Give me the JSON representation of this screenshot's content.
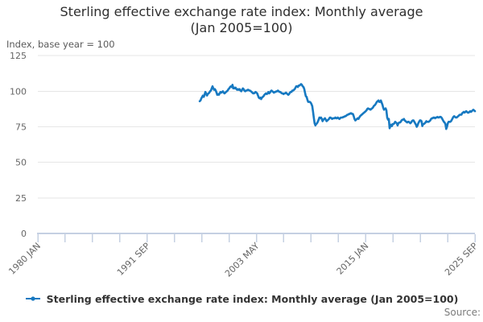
{
  "title": {
    "line1": "Sterling effective exchange rate index: Monthly average",
    "line2": "(Jan 2005=100)"
  },
  "y_axis_unit_label": "Index, base year = 100",
  "legend": {
    "label": "Sterling effective exchange rate index: Monthly average (Jan 2005=100)"
  },
  "source_label": "Source:",
  "colors": {
    "line": "#1779c1",
    "grid": "#e6e6e6",
    "axis": "#c5d0e2",
    "muted_text": "#666666",
    "title_text": "#2e2e2e"
  },
  "chart_data": {
    "type": "line",
    "title": "Sterling effective exchange rate index: Monthly average (Jan 2005=100)",
    "xlabel": "",
    "ylabel": "Index, base year = 100",
    "ylim": [
      0,
      125
    ],
    "y_ticks": [
      0,
      25,
      50,
      75,
      100,
      125
    ],
    "x_tick_labels": [
      "1980 JAN",
      "1991 SEP",
      "2003 MAY",
      "2015 JAN",
      "2025 SEP"
    ],
    "x_axis_range": [
      "1980-01",
      "2025-09"
    ],
    "grid": true,
    "legend_position": "bottom",
    "frequency": "monthly",
    "series_start": "1996-12",
    "series": [
      {
        "name": "Sterling effective exchange rate index: Monthly average (Jan 2005=100)",
        "values": [
          93,
          93.5,
          95,
          96,
          97,
          96,
          97.5,
          99.5,
          98.5,
          97,
          98,
          98.5,
          99,
          100,
          100.5,
          102,
          103.5,
          102,
          101,
          101.5,
          100.5,
          99,
          97.5,
          98,
          97.5,
          98.5,
          99.5,
          99,
          99.5,
          100,
          99,
          98.5,
          99,
          99.5,
          100,
          100.5,
          101.5,
          102,
          103,
          103.5,
          103,
          104.5,
          102,
          102.5,
          102,
          102.5,
          101.5,
          101,
          101.5,
          101,
          101.5,
          100.5,
          100,
          101,
          102,
          101.5,
          100.5,
          100,
          100.5,
          100.5,
          101,
          101,
          100.5,
          100.5,
          100,
          99.5,
          99,
          98.5,
          98.5,
          99,
          99.5,
          99,
          98.5,
          97,
          95.5,
          95,
          95.5,
          94.5,
          95.5,
          96,
          96.5,
          97.5,
          98,
          98.5,
          98,
          98.5,
          99.5,
          98.5,
          99,
          100,
          100.5,
          100,
          99.5,
          99,
          99.5,
          99.5,
          100,
          100,
          100.5,
          100,
          99.5,
          99.5,
          99,
          98.5,
          98.5,
          98,
          98.5,
          98.5,
          99,
          98.5,
          98,
          97.5,
          98,
          99,
          99.5,
          99.5,
          100.5,
          100.5,
          101,
          101.5,
          102.5,
          103.5,
          103.5,
          103,
          104,
          104,
          104.5,
          105,
          104.5,
          103.5,
          103,
          101.5,
          99,
          96.5,
          96,
          94,
          92.5,
          92.5,
          92.5,
          92,
          91,
          89.5,
          85.5,
          81.5,
          77.5,
          76,
          77,
          77.5,
          78.5,
          80,
          81.5,
          81,
          81.5,
          80.5,
          79,
          80,
          80.5,
          81,
          80,
          79,
          79.5,
          80,
          80.5,
          81.5,
          81.5,
          81,
          80.5,
          81,
          81,
          81,
          81.5,
          81,
          81,
          81.5,
          81,
          80.5,
          81,
          81.5,
          81.5,
          81.5,
          82,
          82,
          82.5,
          82.5,
          83,
          83.5,
          83.5,
          84,
          84,
          84.5,
          84.5,
          84,
          84,
          82.5,
          80.5,
          79.5,
          80,
          80.5,
          81,
          80.5,
          81.5,
          82.5,
          83,
          83.5,
          84,
          84.5,
          85,
          85.5,
          86,
          86.5,
          87.5,
          88,
          87.5,
          87.5,
          87,
          87.5,
          88,
          88.5,
          89.5,
          90,
          90.5,
          91.5,
          92.5,
          93,
          93.5,
          92.5,
          92.5,
          93.5,
          92,
          90.5,
          88.5,
          87,
          87.5,
          88,
          86.5,
          81.5,
          80,
          80.5,
          74,
          75.5,
          76.5,
          75.5,
          77,
          77,
          77.5,
          78.5,
          78,
          77.5,
          76,
          77.5,
          78,
          78,
          78.5,
          79.5,
          80,
          80,
          80.5,
          79.5,
          79,
          78.5,
          78,
          78.5,
          78.5,
          78,
          77.5,
          78,
          79,
          79.5,
          79.5,
          78.5,
          77.5,
          76.5,
          75,
          76,
          77.5,
          78.5,
          79.5,
          79.5,
          79,
          75.5,
          77,
          77,
          77.5,
          78,
          79,
          78.5,
          78.5,
          78.5,
          79,
          79.5,
          80.5,
          81,
          81,
          81.5,
          81.5,
          81,
          81.5,
          81.5,
          82,
          81.5,
          81.5,
          82,
          82,
          81.5,
          80.5,
          79.5,
          78.5,
          78,
          77,
          73.5,
          75,
          77.5,
          78.5,
          78.5,
          78.5,
          79,
          80,
          81,
          82,
          82.5,
          82,
          81.5,
          81.5,
          82,
          82.5,
          83,
          83.5,
          83.5,
          83.5,
          84.5,
          85,
          85.5,
          85,
          85.5,
          86,
          85.5,
          85,
          85,
          85.5,
          86,
          85.5,
          86,
          86.5,
          87,
          86.5,
          86
        ]
      }
    ]
  }
}
